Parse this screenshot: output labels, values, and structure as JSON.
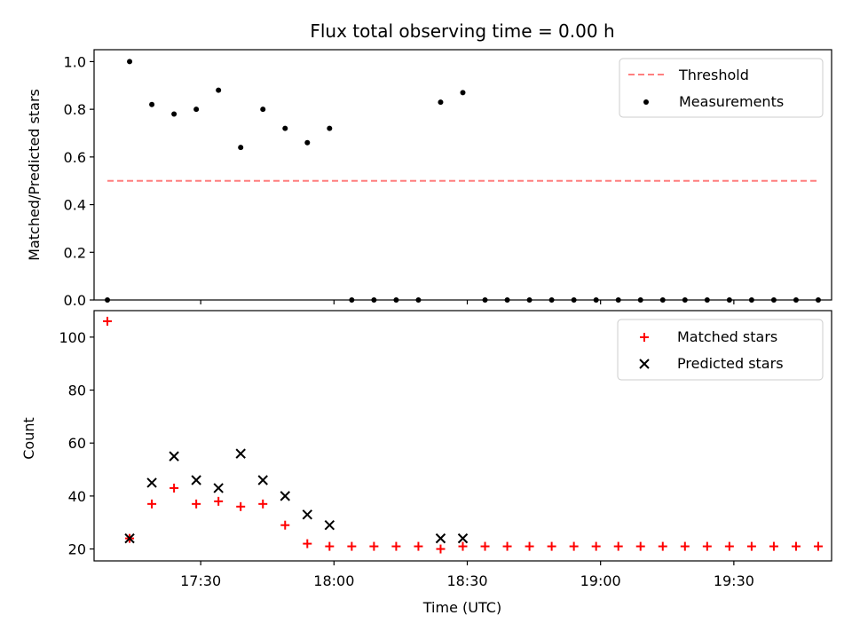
{
  "chart_data": {
    "type": "scatter",
    "title": "Flux total observing time = 0.00 h",
    "xlabel": "Time (UTC)",
    "x_tick_labels": [
      "17:30",
      "18:00",
      "18:30",
      "19:00",
      "19:30"
    ],
    "x_range": [
      "17:06",
      "19:52"
    ],
    "x_times": [
      "17:09",
      "17:14",
      "17:19",
      "17:24",
      "17:29",
      "17:34",
      "17:39",
      "17:44",
      "17:49",
      "17:54",
      "17:59",
      "18:04",
      "18:09",
      "18:14",
      "18:19",
      "18:24",
      "18:29",
      "18:34",
      "18:39",
      "18:44",
      "18:49",
      "18:54",
      "18:59",
      "19:04",
      "19:09",
      "19:14",
      "19:19",
      "19:24",
      "19:29",
      "19:34",
      "19:39",
      "19:44",
      "19:49"
    ],
    "panels": [
      {
        "ylabel": "Matched/Predicted stars",
        "ylim": [
          0,
          1.05
        ],
        "y_ticks": [
          "0.0",
          "0.2",
          "0.4",
          "0.6",
          "0.8",
          "1.0"
        ],
        "legend_position": "upper-right",
        "series": [
          {
            "name": "Threshold",
            "style": "dashed-line",
            "color": "#ff7f7f",
            "x_start": "17:09",
            "x_end": "19:49",
            "y": 0.5
          },
          {
            "name": "Measurements",
            "style": "dot",
            "color": "#000000",
            "values": [
              0.0,
              1.0,
              0.82,
              0.78,
              0.8,
              0.88,
              0.64,
              0.8,
              0.72,
              0.66,
              0.72,
              0.0,
              0.0,
              0.0,
              0.0,
              0.83,
              0.87,
              0.0,
              0.0,
              0.0,
              0.0,
              0.0,
              0.0,
              0.0,
              0.0,
              0.0,
              0.0,
              0.0,
              0.0,
              0.0,
              0.0,
              0.0,
              0.0
            ]
          }
        ]
      },
      {
        "ylabel": "Count",
        "ylim": [
          15.5,
          110
        ],
        "y_ticks": [
          "20",
          "40",
          "60",
          "80",
          "100"
        ],
        "legend_position": "upper-right",
        "series": [
          {
            "name": "Matched stars",
            "style": "plus",
            "color": "#ff0000",
            "values": [
              106,
              24,
              37,
              43,
              37,
              38,
              36,
              37,
              29,
              22,
              21,
              21,
              21,
              21,
              21,
              20,
              21,
              21,
              21,
              21,
              21,
              21,
              21,
              21,
              21,
              21,
              21,
              21,
              21,
              21,
              21,
              21,
              21
            ]
          },
          {
            "name": "Predicted stars",
            "style": "x",
            "color": "#000000",
            "values": [
              null,
              24,
              45,
              55,
              46,
              43,
              56,
              46,
              40,
              33,
              29,
              null,
              null,
              null,
              null,
              24,
              24,
              null,
              null,
              null,
              null,
              null,
              null,
              null,
              null,
              null,
              null,
              null,
              null,
              null,
              null,
              null,
              null
            ]
          }
        ]
      }
    ]
  }
}
